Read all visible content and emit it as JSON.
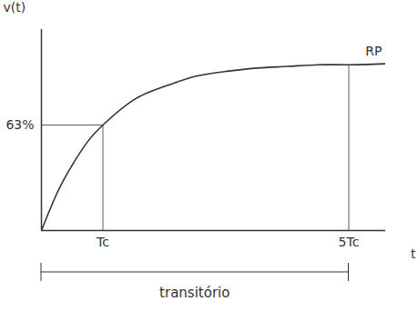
{
  "chart_data": {
    "type": "line",
    "x_label": "t",
    "y_label": "v(t)",
    "x": [
      0,
      0.25,
      0.5,
      0.75,
      1,
      1.5,
      2,
      2.5,
      3,
      3.5,
      4,
      4.5,
      5,
      5.6
    ],
    "values": [
      0,
      22,
      39,
      53,
      63,
      78,
      86,
      92,
      95,
      97,
      98,
      99,
      99,
      99.6
    ],
    "color": "#333333",
    "xlim": [
      0,
      5.6
    ],
    "ylim": [
      0,
      120
    ],
    "xticks": [
      {
        "value": 1,
        "label": "Tc"
      },
      {
        "value": 5,
        "label": "5Tc"
      }
    ],
    "yticks": [
      {
        "value": 63,
        "label": "63%"
      }
    ],
    "grid": false,
    "annotations": [
      {
        "text": "RP"
      },
      {
        "text": "transitório",
        "span": [
          0,
          5
        ]
      }
    ]
  }
}
